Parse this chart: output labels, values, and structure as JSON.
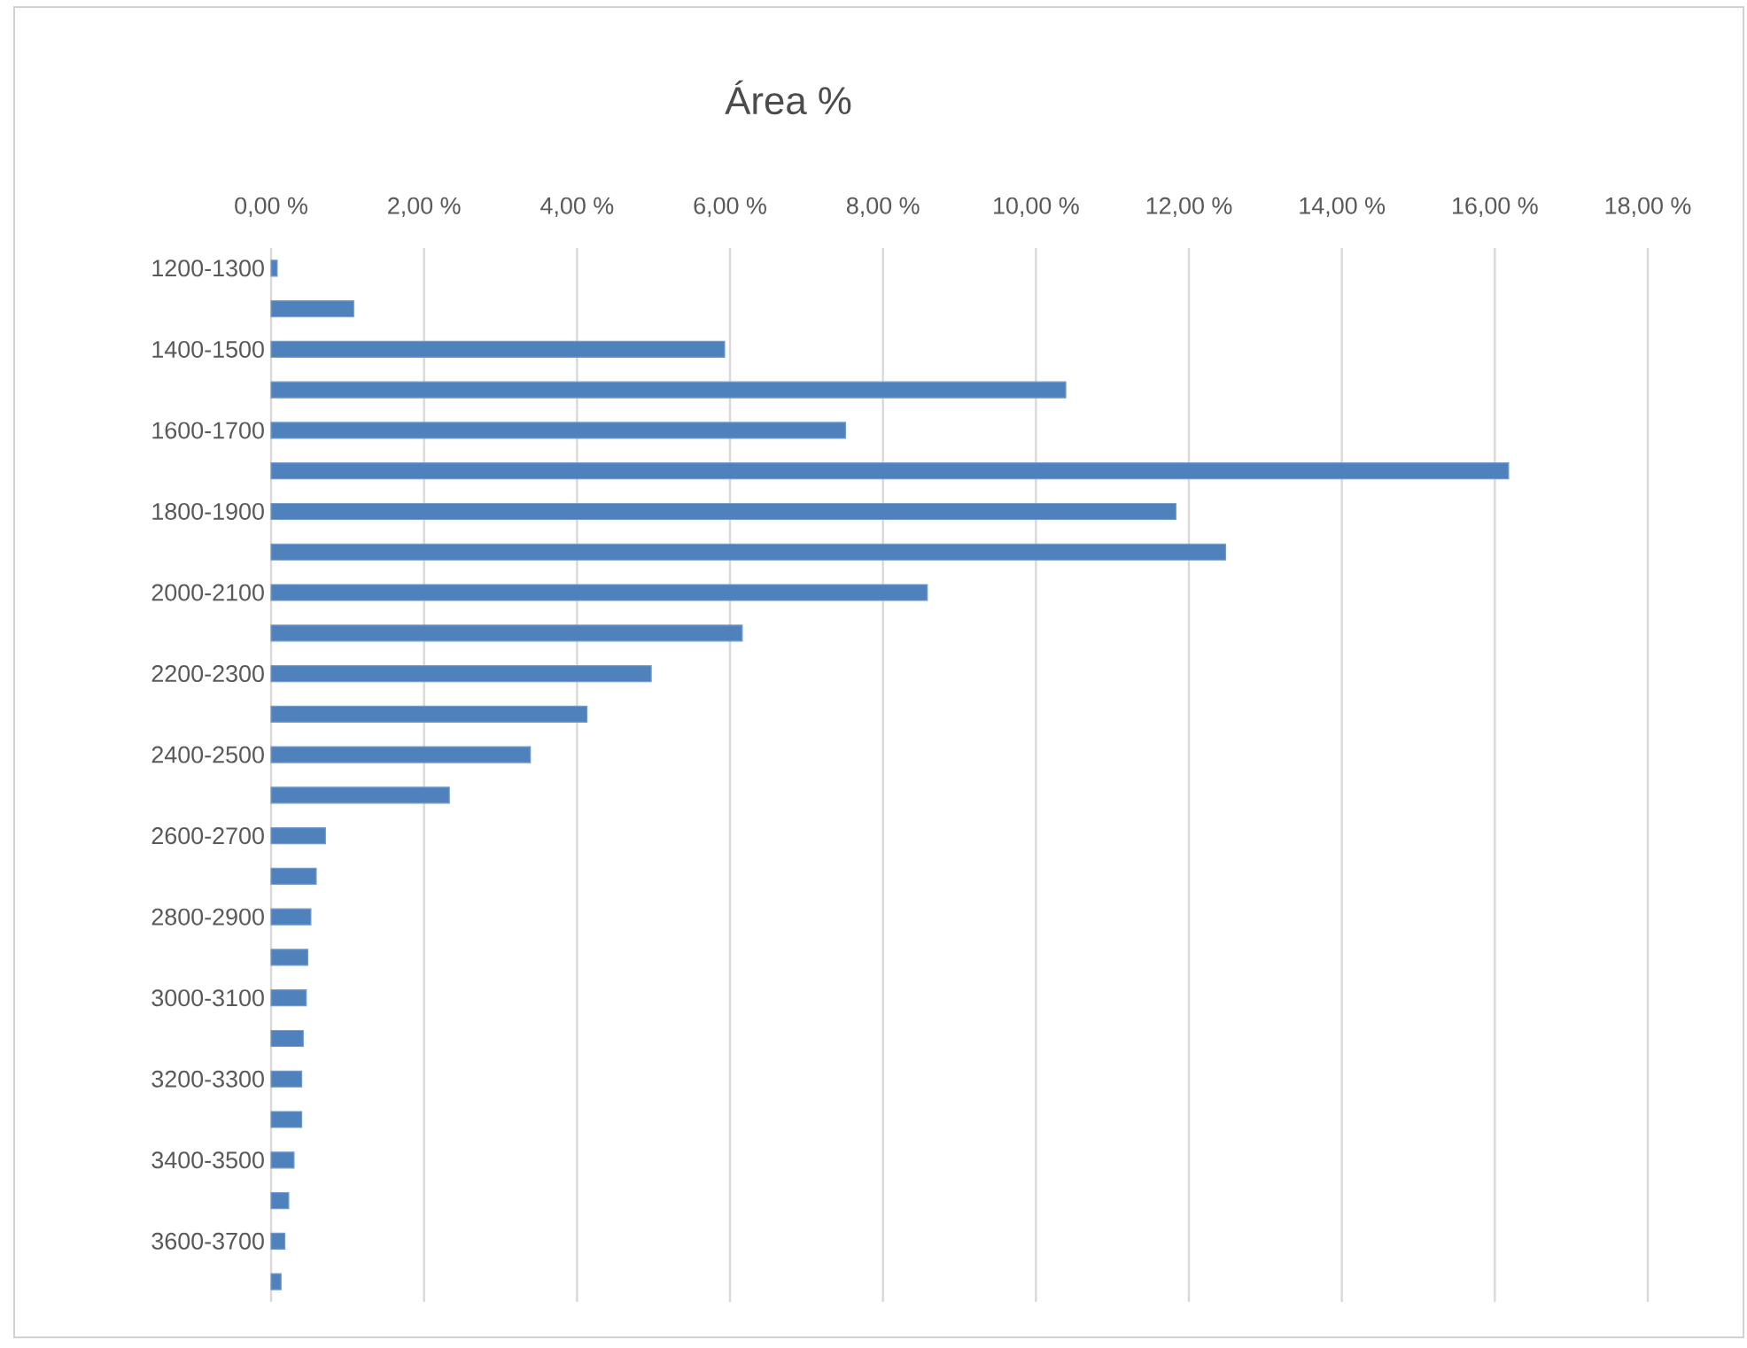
{
  "chart_data": {
    "type": "bar",
    "orientation": "horizontal",
    "title": "Área %",
    "categories": [
      "1200-1300",
      null,
      "1400-1500",
      null,
      "1600-1700",
      null,
      "1800-1900",
      null,
      "2000-2100",
      null,
      "2200-2300",
      null,
      "2400-2500",
      null,
      "2600-2700",
      null,
      "2800-2900",
      null,
      "3000-3100",
      null,
      "3200-3300",
      null,
      "3400-3500",
      null,
      "3600-3700",
      null
    ],
    "values": [
      0.08,
      1.08,
      5.93,
      10.39,
      7.51,
      16.18,
      11.83,
      12.48,
      8.58,
      6.16,
      4.97,
      4.13,
      3.39,
      2.33,
      0.71,
      0.59,
      0.52,
      0.48,
      0.46,
      0.42,
      0.4,
      0.4,
      0.3,
      0.23,
      0.18,
      0.13
    ],
    "color": "#4f81bd",
    "xlim": [
      0,
      18
    ],
    "xticks": [
      {
        "value": 0,
        "label": "0,00 %"
      },
      {
        "value": 2,
        "label": "2,00 %"
      },
      {
        "value": 4,
        "label": "4,00 %"
      },
      {
        "value": 6,
        "label": "6,00 %"
      },
      {
        "value": 8,
        "label": "8,00 %"
      },
      {
        "value": 10,
        "label": "10,00 %"
      },
      {
        "value": 12,
        "label": "12,00 %"
      },
      {
        "value": 14,
        "label": "14,00 %"
      },
      {
        "value": 16,
        "label": "16,00 %"
      },
      {
        "value": 18,
        "label": "18,00 %"
      }
    ],
    "grid": "x"
  }
}
